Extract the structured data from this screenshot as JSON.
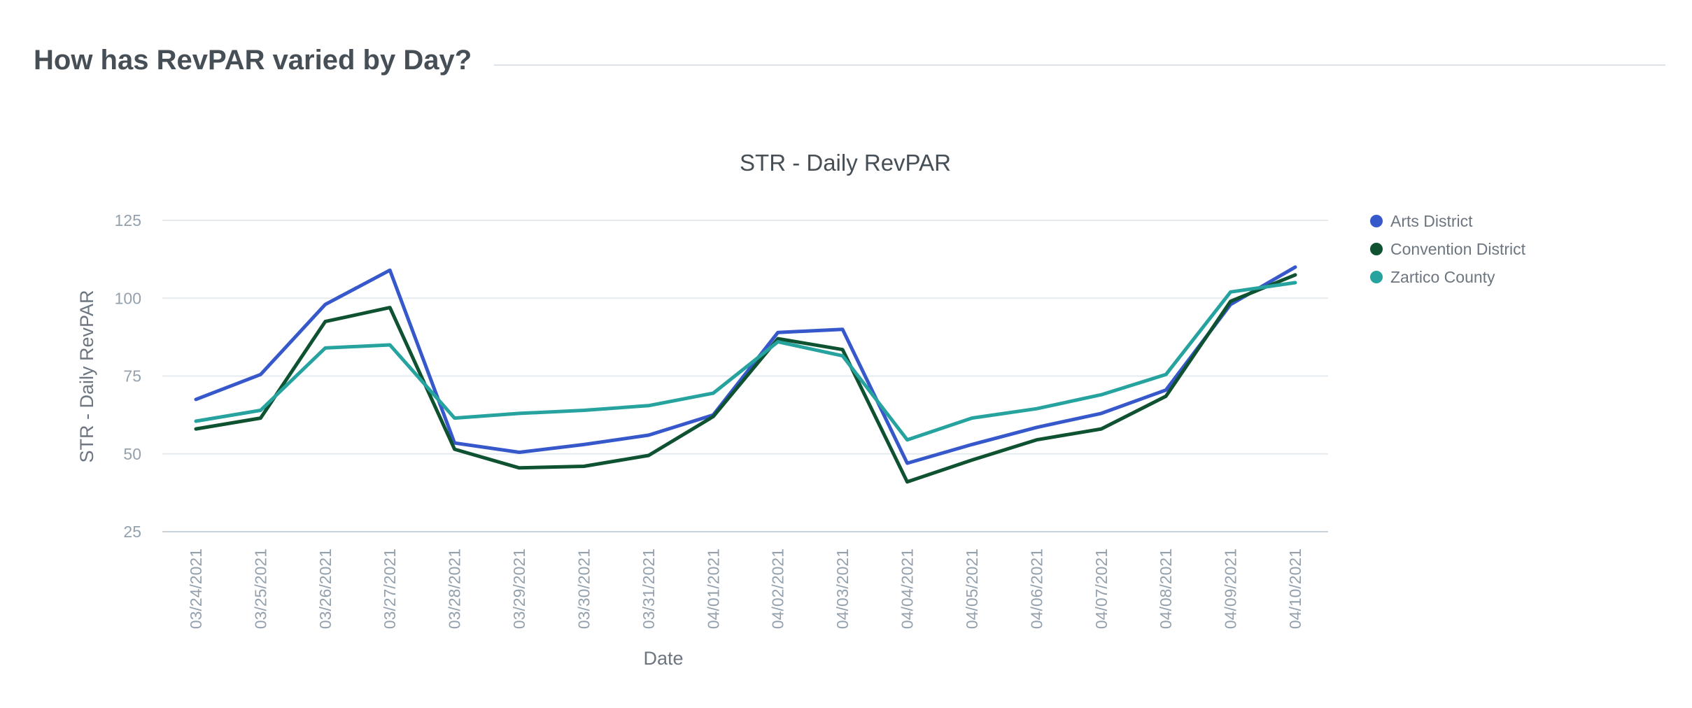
{
  "section": {
    "title": "How has RevPAR varied by Day?"
  },
  "chart_data": {
    "type": "line",
    "title": "STR - Daily RevPAR",
    "xlabel": "Date",
    "ylabel": "STR - Daily RevPAR",
    "ylim": [
      25,
      125
    ],
    "y_ticks": [
      "25",
      "50",
      "75",
      "100",
      "125"
    ],
    "grid": true,
    "legend_position": "right-top",
    "categories": [
      "03/24/2021",
      "03/25/2021",
      "03/26/2021",
      "03/27/2021",
      "03/28/2021",
      "03/29/2021",
      "03/30/2021",
      "03/31/2021",
      "04/01/2021",
      "04/02/2021",
      "04/03/2021",
      "04/04/2021",
      "04/05/2021",
      "04/06/2021",
      "04/07/2021",
      "04/08/2021",
      "04/09/2021",
      "04/10/2021"
    ],
    "series": [
      {
        "name": "Arts District",
        "color": "#3658cb",
        "values": [
          67.5,
          75.5,
          98.0,
          109.0,
          53.5,
          50.5,
          53.0,
          56.0,
          62.5,
          89.0,
          90.0,
          47.0,
          53.0,
          58.5,
          63.0,
          70.5,
          98.0,
          110.0
        ]
      },
      {
        "name": "Convention District",
        "color": "#0e5231",
        "values": [
          58.0,
          61.5,
          92.5,
          97.0,
          51.5,
          45.5,
          46.0,
          49.5,
          62.0,
          87.0,
          83.5,
          41.0,
          48.0,
          54.5,
          58.0,
          68.5,
          99.0,
          107.5
        ]
      },
      {
        "name": "Zartico County",
        "color": "#27a39f",
        "values": [
          60.5,
          64.0,
          84.0,
          85.0,
          61.5,
          63.0,
          64.0,
          65.5,
          69.5,
          86.0,
          81.5,
          54.5,
          61.5,
          64.5,
          69.0,
          75.5,
          102.0,
          105.0
        ]
      }
    ]
  }
}
